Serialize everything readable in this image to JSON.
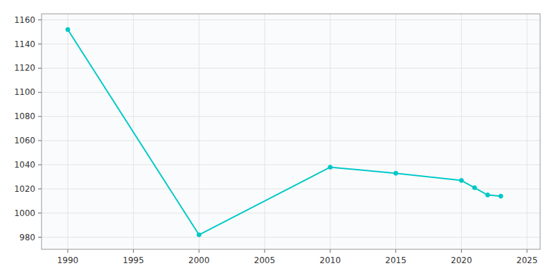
{
  "chart_data": {
    "type": "line",
    "x": [
      1990,
      2000,
      2010,
      2015,
      2020,
      2021,
      2022,
      2023
    ],
    "values": [
      1152,
      982,
      1038,
      1033,
      1027,
      1021,
      1015,
      1014
    ],
    "color": "#00C8C8",
    "marker": "circle",
    "xlim": [
      1988,
      2026
    ],
    "ylim": [
      970,
      1165
    ],
    "xticks": [
      1990,
      1995,
      2000,
      2005,
      2010,
      2015,
      2020,
      2025
    ],
    "yticks": [
      980,
      1000,
      1020,
      1040,
      1060,
      1080,
      1100,
      1120,
      1140,
      1160
    ],
    "grid": true
  }
}
